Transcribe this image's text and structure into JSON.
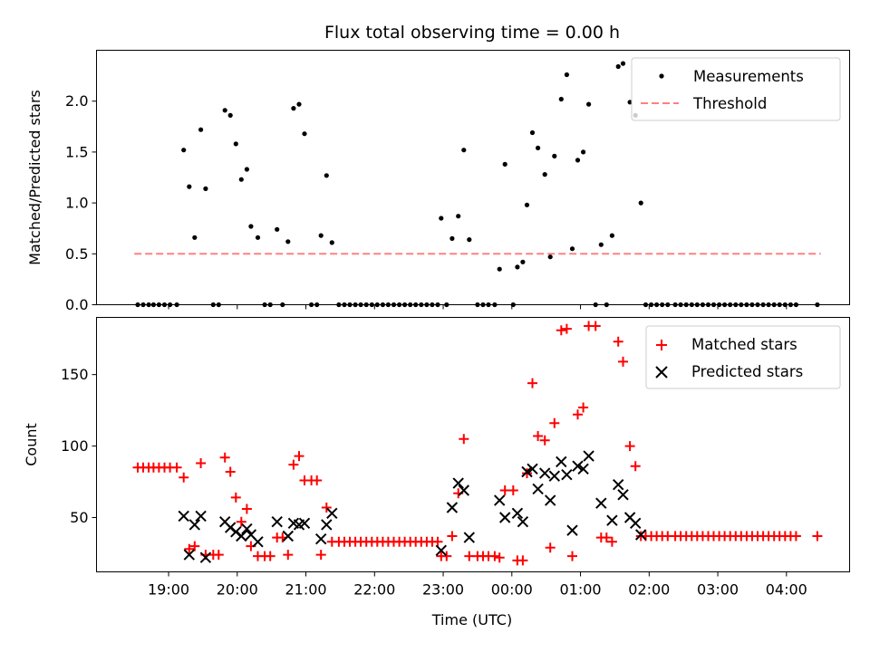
{
  "chart_data": {
    "type": "scatter",
    "title": "Flux total observing time = 0.00 h",
    "xlabel": "Time (UTC)",
    "x_range_hours": [
      17.95,
      28.92
    ],
    "x_ticks": [
      {
        "value": 19,
        "label": "19:00"
      },
      {
        "value": 20,
        "label": "20:00"
      },
      {
        "value": 21,
        "label": "21:00"
      },
      {
        "value": 22,
        "label": "22:00"
      },
      {
        "value": 23,
        "label": "23:00"
      },
      {
        "value": 24,
        "label": "00:00"
      },
      {
        "value": 25,
        "label": "01:00"
      },
      {
        "value": 26,
        "label": "02:00"
      },
      {
        "value": 27,
        "label": "03:00"
      },
      {
        "value": 28,
        "label": "04:00"
      }
    ],
    "top": {
      "ylabel": "Matched/Predicted stars",
      "ylim": [
        0,
        2.5
      ],
      "y_ticks": [
        {
          "value": 0,
          "label": "0.0"
        },
        {
          "value": 0.5,
          "label": "0.5"
        },
        {
          "value": 1.0,
          "label": "1.0"
        },
        {
          "value": 1.5,
          "label": "1.5"
        },
        {
          "value": 2.0,
          "label": "2.0"
        }
      ],
      "legend": {
        "position": "top-right",
        "entries": [
          "Measurements",
          "Threshold"
        ]
      },
      "threshold": {
        "name": "Threshold",
        "value": 0.5,
        "x_start": 18.5,
        "x_end": 28.5,
        "color": "#ff8080"
      },
      "measurements": {
        "name": "Measurements",
        "color": "#000000",
        "points": [
          [
            18.55,
            0
          ],
          [
            18.63,
            0
          ],
          [
            18.71,
            0
          ],
          [
            18.78,
            0
          ],
          [
            18.86,
            0
          ],
          [
            18.94,
            0
          ],
          [
            19.02,
            0
          ],
          [
            19.12,
            0
          ],
          [
            19.22,
            1.52
          ],
          [
            19.3,
            1.16
          ],
          [
            19.38,
            0.66
          ],
          [
            19.47,
            1.72
          ],
          [
            19.54,
            1.14
          ],
          [
            19.65,
            0
          ],
          [
            19.73,
            0
          ],
          [
            19.82,
            1.91
          ],
          [
            19.9,
            1.86
          ],
          [
            19.98,
            1.58
          ],
          [
            20.06,
            1.23
          ],
          [
            20.14,
            1.33
          ],
          [
            20.2,
            0.77
          ],
          [
            20.3,
            0.66
          ],
          [
            20.4,
            0
          ],
          [
            20.48,
            0
          ],
          [
            20.58,
            0.74
          ],
          [
            20.66,
            0
          ],
          [
            20.74,
            0.62
          ],
          [
            20.82,
            1.93
          ],
          [
            20.9,
            1.97
          ],
          [
            20.98,
            1.68
          ],
          [
            21.08,
            0
          ],
          [
            21.16,
            0
          ],
          [
            21.22,
            0.68
          ],
          [
            21.3,
            1.27
          ],
          [
            21.38,
            0.61
          ],
          [
            21.48,
            0
          ],
          [
            21.56,
            0
          ],
          [
            21.64,
            0
          ],
          [
            21.72,
            0
          ],
          [
            21.8,
            0
          ],
          [
            21.88,
            0
          ],
          [
            21.96,
            0
          ],
          [
            22.04,
            0
          ],
          [
            22.12,
            0
          ],
          [
            22.2,
            0
          ],
          [
            22.28,
            0
          ],
          [
            22.36,
            0
          ],
          [
            22.44,
            0
          ],
          [
            22.52,
            0
          ],
          [
            22.6,
            0
          ],
          [
            22.68,
            0
          ],
          [
            22.76,
            0
          ],
          [
            22.84,
            0
          ],
          [
            22.92,
            0
          ],
          [
            22.97,
            0.85
          ],
          [
            23.05,
            0
          ],
          [
            23.13,
            0.65
          ],
          [
            23.22,
            0.87
          ],
          [
            23.3,
            1.52
          ],
          [
            23.38,
            0.64
          ],
          [
            23.5,
            0
          ],
          [
            23.58,
            0
          ],
          [
            23.66,
            0
          ],
          [
            23.75,
            0
          ],
          [
            23.82,
            0.35
          ],
          [
            23.9,
            1.38
          ],
          [
            24.02,
            0
          ],
          [
            24.08,
            0.37
          ],
          [
            24.16,
            0.42
          ],
          [
            24.22,
            0.98
          ],
          [
            24.3,
            1.69
          ],
          [
            24.38,
            1.54
          ],
          [
            24.48,
            1.28
          ],
          [
            24.56,
            0.47
          ],
          [
            24.62,
            1.46
          ],
          [
            24.72,
            2.02
          ],
          [
            24.8,
            2.26
          ],
          [
            24.88,
            0.55
          ],
          [
            24.96,
            1.42
          ],
          [
            25.04,
            1.5
          ],
          [
            25.12,
            1.97
          ],
          [
            25.22,
            0
          ],
          [
            25.3,
            0.59
          ],
          [
            25.38,
            0
          ],
          [
            25.46,
            0.68
          ],
          [
            25.55,
            2.34
          ],
          [
            25.62,
            2.37
          ],
          [
            25.72,
            1.99
          ],
          [
            25.8,
            1.86
          ],
          [
            25.88,
            1.0
          ],
          [
            25.95,
            0
          ],
          [
            26.03,
            0
          ],
          [
            26.11,
            0
          ],
          [
            26.19,
            0
          ],
          [
            26.27,
            0
          ],
          [
            26.38,
            0
          ],
          [
            26.46,
            0
          ],
          [
            26.54,
            0
          ],
          [
            26.62,
            0
          ],
          [
            26.7,
            0
          ],
          [
            26.78,
            0
          ],
          [
            26.86,
            0
          ],
          [
            26.94,
            0
          ],
          [
            27.02,
            0
          ],
          [
            27.1,
            0
          ],
          [
            27.18,
            0
          ],
          [
            27.26,
            0
          ],
          [
            27.34,
            0
          ],
          [
            27.42,
            0
          ],
          [
            27.5,
            0
          ],
          [
            27.58,
            0
          ],
          [
            27.66,
            0
          ],
          [
            27.74,
            0
          ],
          [
            27.82,
            0
          ],
          [
            27.9,
            0
          ],
          [
            27.98,
            0
          ],
          [
            28.06,
            0
          ],
          [
            28.14,
            0
          ],
          [
            28.45,
            0
          ]
        ]
      }
    },
    "bottom": {
      "ylabel": "Count",
      "ylim": [
        12,
        190
      ],
      "y_ticks": [
        {
          "value": 50,
          "label": "50"
        },
        {
          "value": 100,
          "label": "100"
        },
        {
          "value": 150,
          "label": "150"
        }
      ],
      "legend": {
        "position": "top-right",
        "entries": [
          "Matched stars",
          "Predicted stars"
        ]
      },
      "matched": {
        "name": "Matched stars",
        "color": "#ff0000",
        "points": [
          [
            18.55,
            85
          ],
          [
            18.63,
            85
          ],
          [
            18.71,
            85
          ],
          [
            18.78,
            85
          ],
          [
            18.86,
            85
          ],
          [
            18.94,
            85
          ],
          [
            19.02,
            85
          ],
          [
            19.12,
            85
          ],
          [
            19.22,
            78
          ],
          [
            19.3,
            28
          ],
          [
            19.38,
            30
          ],
          [
            19.47,
            88
          ],
          [
            19.54,
            24
          ],
          [
            19.65,
            24
          ],
          [
            19.73,
            24
          ],
          [
            19.82,
            92
          ],
          [
            19.9,
            82
          ],
          [
            19.98,
            64
          ],
          [
            20.06,
            47
          ],
          [
            20.14,
            56
          ],
          [
            20.2,
            30
          ],
          [
            20.3,
            23
          ],
          [
            20.4,
            23
          ],
          [
            20.48,
            23
          ],
          [
            20.58,
            36
          ],
          [
            20.66,
            36
          ],
          [
            20.74,
            24
          ],
          [
            20.82,
            87
          ],
          [
            20.9,
            93
          ],
          [
            20.98,
            76
          ],
          [
            21.08,
            76
          ],
          [
            21.16,
            76
          ],
          [
            21.22,
            24
          ],
          [
            21.3,
            57
          ],
          [
            21.38,
            33
          ],
          [
            21.48,
            33
          ],
          [
            21.56,
            33
          ],
          [
            21.64,
            33
          ],
          [
            21.72,
            33
          ],
          [
            21.8,
            33
          ],
          [
            21.88,
            33
          ],
          [
            21.96,
            33
          ],
          [
            22.04,
            33
          ],
          [
            22.12,
            33
          ],
          [
            22.2,
            33
          ],
          [
            22.28,
            33
          ],
          [
            22.36,
            33
          ],
          [
            22.44,
            33
          ],
          [
            22.52,
            33
          ],
          [
            22.6,
            33
          ],
          [
            22.68,
            33
          ],
          [
            22.76,
            33
          ],
          [
            22.84,
            33
          ],
          [
            22.92,
            33
          ],
          [
            22.97,
            23
          ],
          [
            23.05,
            23
          ],
          [
            23.13,
            37
          ],
          [
            23.22,
            67
          ],
          [
            23.3,
            105
          ],
          [
            23.38,
            23
          ],
          [
            23.5,
            23
          ],
          [
            23.58,
            23
          ],
          [
            23.66,
            23
          ],
          [
            23.75,
            23
          ],
          [
            23.82,
            22
          ],
          [
            23.9,
            69
          ],
          [
            24.02,
            69
          ],
          [
            24.08,
            20
          ],
          [
            24.16,
            20
          ],
          [
            24.22,
            81
          ],
          [
            24.3,
            144
          ],
          [
            24.38,
            107
          ],
          [
            24.48,
            104
          ],
          [
            24.56,
            29
          ],
          [
            24.62,
            116
          ],
          [
            24.72,
            181
          ],
          [
            24.8,
            182
          ],
          [
            24.88,
            23
          ],
          [
            24.96,
            122
          ],
          [
            25.04,
            127
          ],
          [
            25.12,
            184
          ],
          [
            25.22,
            184
          ],
          [
            25.3,
            36
          ],
          [
            25.38,
            36
          ],
          [
            25.46,
            33
          ],
          [
            25.55,
            173
          ],
          [
            25.62,
            159
          ],
          [
            25.72,
            100
          ],
          [
            25.8,
            86
          ],
          [
            25.88,
            37
          ],
          [
            25.95,
            37
          ],
          [
            26.03,
            37
          ],
          [
            26.11,
            37
          ],
          [
            26.19,
            37
          ],
          [
            26.27,
            37
          ],
          [
            26.38,
            37
          ],
          [
            26.46,
            37
          ],
          [
            26.54,
            37
          ],
          [
            26.62,
            37
          ],
          [
            26.7,
            37
          ],
          [
            26.78,
            37
          ],
          [
            26.86,
            37
          ],
          [
            26.94,
            37
          ],
          [
            27.02,
            37
          ],
          [
            27.1,
            37
          ],
          [
            27.18,
            37
          ],
          [
            27.26,
            37
          ],
          [
            27.34,
            37
          ],
          [
            27.42,
            37
          ],
          [
            27.5,
            37
          ],
          [
            27.58,
            37
          ],
          [
            27.66,
            37
          ],
          [
            27.74,
            37
          ],
          [
            27.82,
            37
          ],
          [
            27.9,
            37
          ],
          [
            27.98,
            37
          ],
          [
            28.06,
            37
          ],
          [
            28.14,
            37
          ],
          [
            28.45,
            37
          ]
        ]
      },
      "predicted": {
        "name": "Predicted stars",
        "color": "#000000",
        "points": [
          [
            19.22,
            51
          ],
          [
            19.3,
            24
          ],
          [
            19.38,
            45
          ],
          [
            19.47,
            51
          ],
          [
            19.54,
            22
          ],
          [
            19.82,
            47
          ],
          [
            19.9,
            43
          ],
          [
            19.98,
            40
          ],
          [
            20.06,
            37
          ],
          [
            20.14,
            42
          ],
          [
            20.2,
            38
          ],
          [
            20.3,
            33
          ],
          [
            20.58,
            47
          ],
          [
            20.74,
            37
          ],
          [
            20.82,
            46
          ],
          [
            20.9,
            45
          ],
          [
            20.98,
            46
          ],
          [
            21.22,
            35
          ],
          [
            21.3,
            45
          ],
          [
            21.38,
            53
          ],
          [
            22.97,
            27
          ],
          [
            23.13,
            57
          ],
          [
            23.22,
            74
          ],
          [
            23.3,
            69
          ],
          [
            23.38,
            36
          ],
          [
            23.82,
            62
          ],
          [
            23.9,
            50
          ],
          [
            24.08,
            53
          ],
          [
            24.16,
            47
          ],
          [
            24.22,
            82
          ],
          [
            24.3,
            84
          ],
          [
            24.38,
            70
          ],
          [
            24.48,
            81
          ],
          [
            24.56,
            62
          ],
          [
            24.62,
            79
          ],
          [
            24.72,
            89
          ],
          [
            24.8,
            80
          ],
          [
            24.88,
            41
          ],
          [
            24.96,
            86
          ],
          [
            25.04,
            84
          ],
          [
            25.12,
            93
          ],
          [
            25.3,
            60
          ],
          [
            25.46,
            48
          ],
          [
            25.55,
            73
          ],
          [
            25.62,
            66
          ],
          [
            25.72,
            50
          ],
          [
            25.8,
            46
          ],
          [
            25.88,
            38
          ]
        ]
      }
    }
  }
}
